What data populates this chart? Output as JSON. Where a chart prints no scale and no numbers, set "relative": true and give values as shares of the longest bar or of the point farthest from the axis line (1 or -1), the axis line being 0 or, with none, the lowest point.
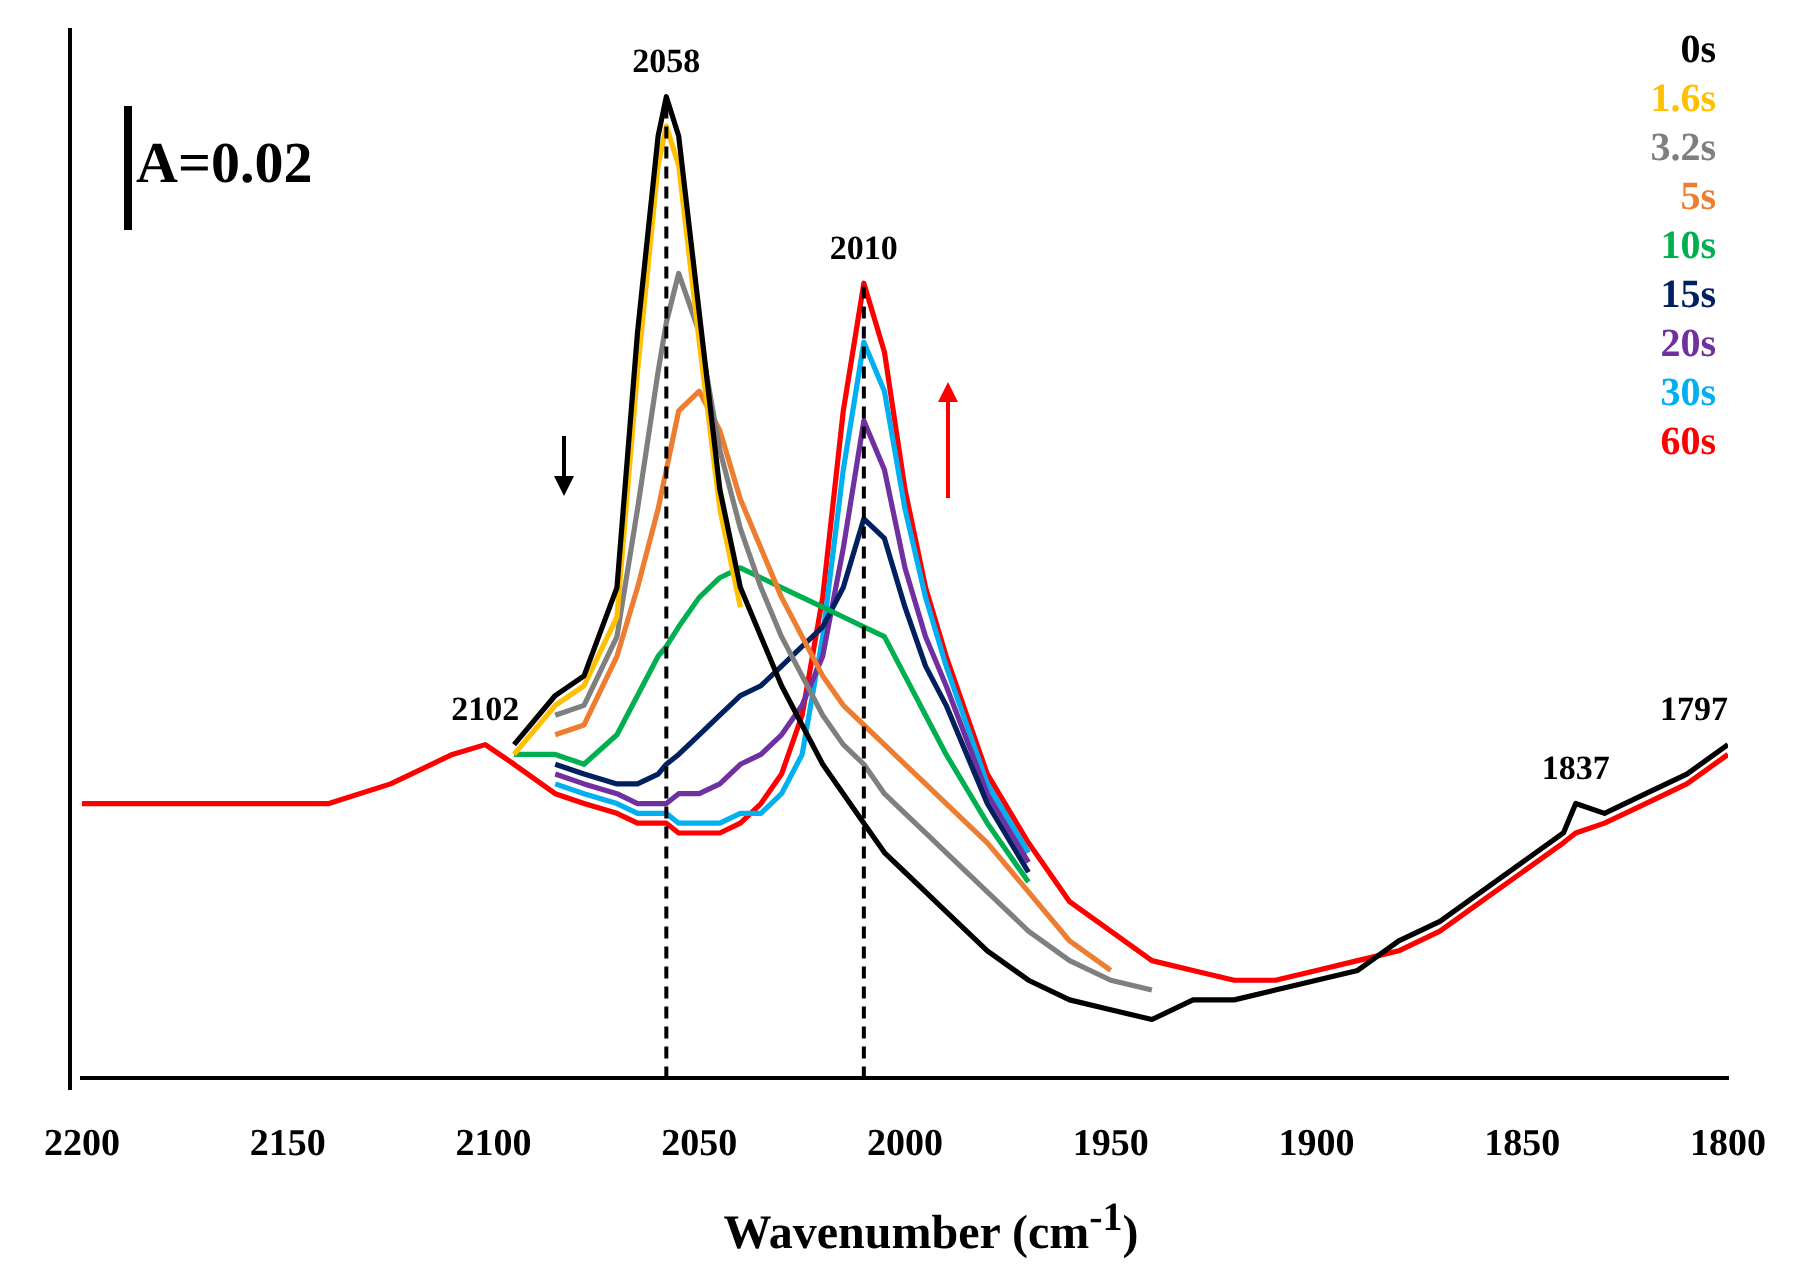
{
  "chart_data": {
    "type": "line",
    "relative": true,
    "xlabel": "Wavenumber (cm$^{-1}$)",
    "x": [
      2200,
      2180,
      2160,
      2140,
      2125,
      2110,
      2102,
      2095,
      2085,
      2078,
      2070,
      2065,
      2060,
      2058,
      2055,
      2050,
      2045,
      2040,
      2035,
      2030,
      2025,
      2020,
      2015,
      2010,
      2005,
      2000,
      1995,
      1990,
      1980,
      1970,
      1960,
      1950,
      1940,
      1930,
      1920,
      1910,
      1900,
      1890,
      1880,
      1870,
      1860,
      1850,
      1840,
      1837,
      1830,
      1820,
      1810,
      1800
    ],
    "xlim": [
      2200,
      1800
    ],
    "xticks": [
      2200,
      2150,
      2100,
      2050,
      2000,
      1950,
      1900,
      1850,
      1800
    ],
    "grid": false,
    "legend": "top right",
    "marker": "none",
    "line_style": "solid",
    "series": [
      {
        "name": "0s",
        "color": "#000000",
        "values": [
          null,
          null,
          null,
          null,
          null,
          null,
          null,
          0.34,
          0.39,
          0.41,
          0.5,
          0.76,
          0.96,
          1,
          0.96,
          0.78,
          0.6,
          0.5,
          0.45,
          0.4,
          0.36,
          0.32,
          0.29,
          0.26,
          0.23,
          0.21,
          0.19,
          0.17,
          0.13,
          0.1,
          0.08,
          0.07,
          0.06,
          0.08,
          0.08,
          0.09,
          0.1,
          0.11,
          0.14,
          0.16,
          0.19,
          0.22,
          0.25,
          0.28,
          0.27,
          0.29,
          0.31,
          0.34
        ]
      },
      {
        "name": "1.6s",
        "color": "#ffc000",
        "values": [
          null,
          null,
          null,
          null,
          null,
          null,
          null,
          0.33,
          0.38,
          0.4,
          0.47,
          0.72,
          0.93,
          0.97,
          0.93,
          0.75,
          0.58,
          0.48,
          null,
          null,
          null,
          null,
          null,
          null,
          null,
          null,
          null,
          null,
          null,
          null,
          null,
          null,
          null,
          null,
          null,
          null,
          null,
          null,
          null,
          null,
          null,
          null,
          null,
          null,
          null,
          null,
          null,
          null
        ]
      },
      {
        "name": "3.2s",
        "color": "#7f7f7f",
        "values": [
          null,
          null,
          null,
          null,
          null,
          null,
          null,
          null,
          0.37,
          0.38,
          0.45,
          0.58,
          0.72,
          0.77,
          0.82,
          0.76,
          0.64,
          0.56,
          0.5,
          0.45,
          0.41,
          0.37,
          0.34,
          0.32,
          0.29,
          0.27,
          0.25,
          0.23,
          0.19,
          0.15,
          0.12,
          0.1,
          0.09,
          null,
          null,
          null,
          null,
          null,
          null,
          null,
          null,
          null,
          null,
          null,
          null,
          null,
          null,
          null
        ]
      },
      {
        "name": "5s",
        "color": "#ed7d31",
        "values": [
          null,
          null,
          null,
          null,
          null,
          null,
          null,
          null,
          0.35,
          0.36,
          0.43,
          0.5,
          0.58,
          0.62,
          0.68,
          0.7,
          0.66,
          0.59,
          0.54,
          0.49,
          0.45,
          0.41,
          0.38,
          0.36,
          0.34,
          0.32,
          0.3,
          0.28,
          0.24,
          0.19,
          0.14,
          0.11,
          null,
          null,
          null,
          null,
          null,
          null,
          null,
          null,
          null,
          null,
          null,
          null,
          null,
          null,
          null,
          null
        ]
      },
      {
        "name": "10s",
        "color": "#00b050",
        "values": [
          null,
          null,
          null,
          null,
          null,
          null,
          null,
          0.33,
          0.33,
          0.32,
          0.35,
          0.39,
          0.43,
          0.44,
          0.46,
          0.49,
          0.51,
          0.52,
          0.51,
          0.5,
          0.49,
          0.48,
          0.47,
          0.46,
          0.45,
          0.41,
          0.37,
          0.33,
          0.26,
          0.2,
          null,
          null,
          null,
          null,
          null,
          null,
          null,
          null,
          null,
          null,
          null,
          null,
          null,
          null,
          null,
          null,
          null,
          null
        ]
      },
      {
        "name": "15s",
        "color": "#002060",
        "values": [
          null,
          null,
          null,
          null,
          null,
          null,
          null,
          null,
          0.32,
          0.31,
          0.3,
          0.3,
          0.31,
          0.32,
          0.33,
          0.35,
          0.37,
          0.39,
          0.4,
          0.42,
          0.44,
          0.46,
          0.5,
          0.57,
          0.55,
          0.48,
          0.42,
          0.38,
          0.28,
          0.21,
          null,
          null,
          null,
          null,
          null,
          null,
          null,
          null,
          null,
          null,
          null,
          null,
          null,
          null,
          null,
          null,
          null,
          null
        ]
      },
      {
        "name": "20s",
        "color": "#7030a0",
        "values": [
          null,
          null,
          null,
          null,
          null,
          null,
          null,
          null,
          0.31,
          0.3,
          0.29,
          0.28,
          0.28,
          0.28,
          0.29,
          0.29,
          0.3,
          0.32,
          0.33,
          0.35,
          0.38,
          0.43,
          0.54,
          0.67,
          0.62,
          0.52,
          0.45,
          0.4,
          0.29,
          0.22,
          null,
          null,
          null,
          null,
          null,
          null,
          null,
          null,
          null,
          null,
          null,
          null,
          null,
          null,
          null,
          null,
          null,
          null
        ]
      },
      {
        "name": "30s",
        "color": "#00b0f0",
        "values": [
          null,
          null,
          null,
          null,
          null,
          null,
          null,
          null,
          0.3,
          0.29,
          0.28,
          0.27,
          0.27,
          0.27,
          0.26,
          0.26,
          0.26,
          0.27,
          0.27,
          0.29,
          0.33,
          0.45,
          0.62,
          0.75,
          0.7,
          0.58,
          0.49,
          0.42,
          0.3,
          0.23,
          null,
          null,
          null,
          null,
          null,
          null,
          null,
          null,
          null,
          null,
          null,
          null,
          null,
          null,
          null,
          null,
          null,
          null
        ]
      },
      {
        "name": "60s",
        "color": "#ff0000",
        "values": [
          0.28,
          0.28,
          0.28,
          0.28,
          0.3,
          0.33,
          0.34,
          0.32,
          0.29,
          0.28,
          0.27,
          0.26,
          0.26,
          0.26,
          0.25,
          0.25,
          0.25,
          0.26,
          0.28,
          0.31,
          0.37,
          0.49,
          0.68,
          0.81,
          0.74,
          0.6,
          0.5,
          0.43,
          0.31,
          0.24,
          0.18,
          0.15,
          0.12,
          0.11,
          0.1,
          0.1,
          0.11,
          0.12,
          0.13,
          0.15,
          0.18,
          0.21,
          0.24,
          0.25,
          0.26,
          0.28,
          0.3,
          0.33
        ]
      }
    ],
    "ref_lines": [
      {
        "axis": "x",
        "value": 2058,
        "color": "#000000",
        "line_style": "dashed"
      },
      {
        "axis": "x",
        "value": 2010,
        "color": "#000000",
        "line_style": "dashed"
      }
    ],
    "annotations": [
      "A=0.02",
      {
        "text": "2058",
        "x": 2058,
        "y": 1
      },
      {
        "text": "2010",
        "x": 2010,
        "y": 0.81
      },
      {
        "text": "2102",
        "x": 2102,
        "y": 0.34
      },
      {
        "text": "1837",
        "x": 1837,
        "y": 0.28
      },
      {
        "text": "1797",
        "x": 1800,
        "y": 0.34
      }
    ]
  }
}
